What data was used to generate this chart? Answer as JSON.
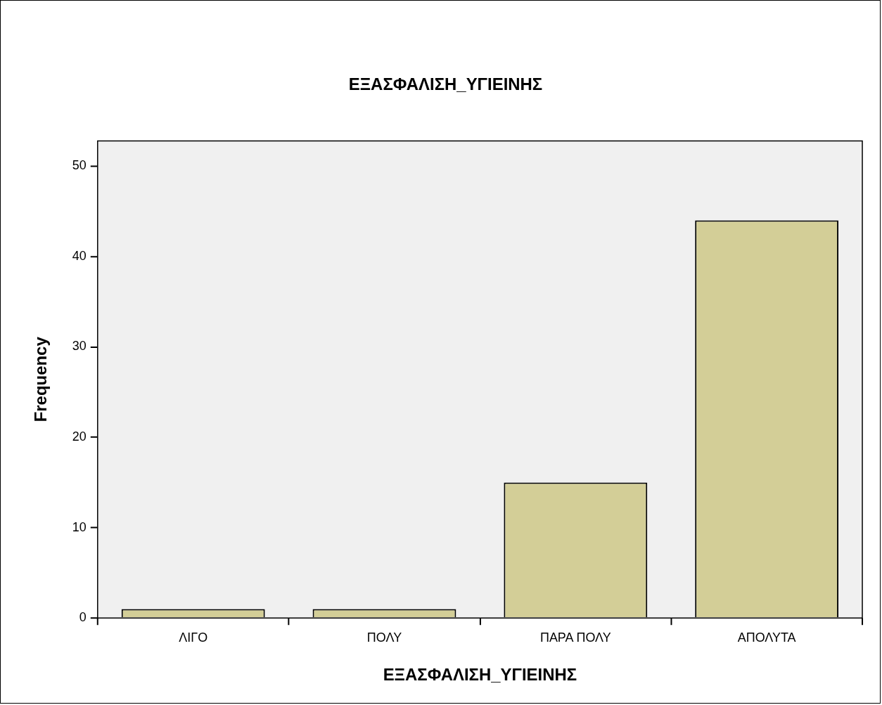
{
  "chart_data": {
    "type": "bar",
    "title": "ΕΞΑΣΦΑΛΙΣΗ_ΥΓΙΕΙΝΗΣ",
    "xlabel": "ΕΞΑΣΦΑΛΙΣΗ_ΥΓΙΕΙΝΗΣ",
    "ylabel": "Frequency",
    "categories": [
      "ΛΙΓΟ",
      "ΠΟΛΥ",
      "ΠΑΡΑ ΠΟΛΥ",
      "ΑΠΟΛΥΤΑ"
    ],
    "values": [
      1,
      1,
      15,
      44
    ],
    "color": "#d3ce97",
    "ylim": [
      0,
      52.8
    ],
    "yticks": [
      0,
      10,
      20,
      30,
      40,
      50
    ],
    "grid": false,
    "legend": false
  }
}
